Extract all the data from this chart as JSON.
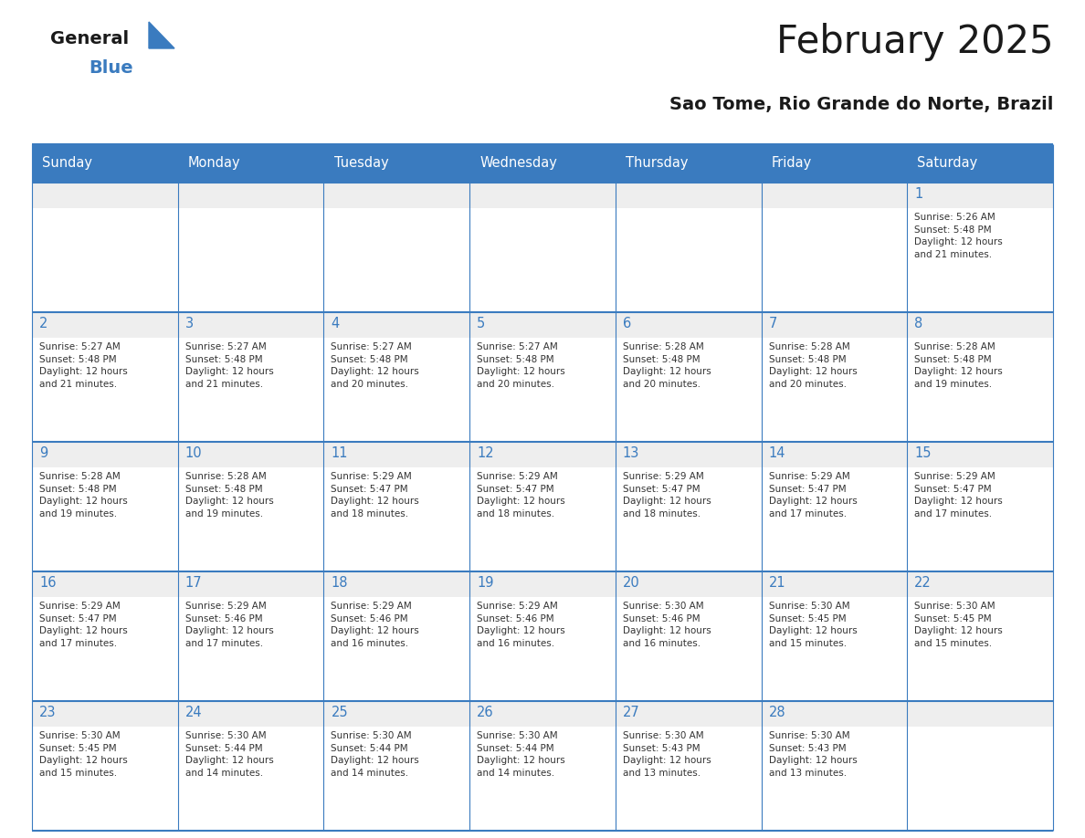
{
  "title": "February 2025",
  "subtitle": "Sao Tome, Rio Grande do Norte, Brazil",
  "header_color": "#3a7bbf",
  "header_text_color": "#ffffff",
  "cell_top_bg": "#eeeeee",
  "cell_body_bg": "#ffffff",
  "day_number_color": "#3a7bbf",
  "text_color": "#333333",
  "line_color": "#3a7bbf",
  "days_of_week": [
    "Sunday",
    "Monday",
    "Tuesday",
    "Wednesday",
    "Thursday",
    "Friday",
    "Saturday"
  ],
  "weeks": [
    [
      {
        "day": "",
        "info": ""
      },
      {
        "day": "",
        "info": ""
      },
      {
        "day": "",
        "info": ""
      },
      {
        "day": "",
        "info": ""
      },
      {
        "day": "",
        "info": ""
      },
      {
        "day": "",
        "info": ""
      },
      {
        "day": "1",
        "info": "Sunrise: 5:26 AM\nSunset: 5:48 PM\nDaylight: 12 hours\nand 21 minutes."
      }
    ],
    [
      {
        "day": "2",
        "info": "Sunrise: 5:27 AM\nSunset: 5:48 PM\nDaylight: 12 hours\nand 21 minutes."
      },
      {
        "day": "3",
        "info": "Sunrise: 5:27 AM\nSunset: 5:48 PM\nDaylight: 12 hours\nand 21 minutes."
      },
      {
        "day": "4",
        "info": "Sunrise: 5:27 AM\nSunset: 5:48 PM\nDaylight: 12 hours\nand 20 minutes."
      },
      {
        "day": "5",
        "info": "Sunrise: 5:27 AM\nSunset: 5:48 PM\nDaylight: 12 hours\nand 20 minutes."
      },
      {
        "day": "6",
        "info": "Sunrise: 5:28 AM\nSunset: 5:48 PM\nDaylight: 12 hours\nand 20 minutes."
      },
      {
        "day": "7",
        "info": "Sunrise: 5:28 AM\nSunset: 5:48 PM\nDaylight: 12 hours\nand 20 minutes."
      },
      {
        "day": "8",
        "info": "Sunrise: 5:28 AM\nSunset: 5:48 PM\nDaylight: 12 hours\nand 19 minutes."
      }
    ],
    [
      {
        "day": "9",
        "info": "Sunrise: 5:28 AM\nSunset: 5:48 PM\nDaylight: 12 hours\nand 19 minutes."
      },
      {
        "day": "10",
        "info": "Sunrise: 5:28 AM\nSunset: 5:48 PM\nDaylight: 12 hours\nand 19 minutes."
      },
      {
        "day": "11",
        "info": "Sunrise: 5:29 AM\nSunset: 5:47 PM\nDaylight: 12 hours\nand 18 minutes."
      },
      {
        "day": "12",
        "info": "Sunrise: 5:29 AM\nSunset: 5:47 PM\nDaylight: 12 hours\nand 18 minutes."
      },
      {
        "day": "13",
        "info": "Sunrise: 5:29 AM\nSunset: 5:47 PM\nDaylight: 12 hours\nand 18 minutes."
      },
      {
        "day": "14",
        "info": "Sunrise: 5:29 AM\nSunset: 5:47 PM\nDaylight: 12 hours\nand 17 minutes."
      },
      {
        "day": "15",
        "info": "Sunrise: 5:29 AM\nSunset: 5:47 PM\nDaylight: 12 hours\nand 17 minutes."
      }
    ],
    [
      {
        "day": "16",
        "info": "Sunrise: 5:29 AM\nSunset: 5:47 PM\nDaylight: 12 hours\nand 17 minutes."
      },
      {
        "day": "17",
        "info": "Sunrise: 5:29 AM\nSunset: 5:46 PM\nDaylight: 12 hours\nand 17 minutes."
      },
      {
        "day": "18",
        "info": "Sunrise: 5:29 AM\nSunset: 5:46 PM\nDaylight: 12 hours\nand 16 minutes."
      },
      {
        "day": "19",
        "info": "Sunrise: 5:29 AM\nSunset: 5:46 PM\nDaylight: 12 hours\nand 16 minutes."
      },
      {
        "day": "20",
        "info": "Sunrise: 5:30 AM\nSunset: 5:46 PM\nDaylight: 12 hours\nand 16 minutes."
      },
      {
        "day": "21",
        "info": "Sunrise: 5:30 AM\nSunset: 5:45 PM\nDaylight: 12 hours\nand 15 minutes."
      },
      {
        "day": "22",
        "info": "Sunrise: 5:30 AM\nSunset: 5:45 PM\nDaylight: 12 hours\nand 15 minutes."
      }
    ],
    [
      {
        "day": "23",
        "info": "Sunrise: 5:30 AM\nSunset: 5:45 PM\nDaylight: 12 hours\nand 15 minutes."
      },
      {
        "day": "24",
        "info": "Sunrise: 5:30 AM\nSunset: 5:44 PM\nDaylight: 12 hours\nand 14 minutes."
      },
      {
        "day": "25",
        "info": "Sunrise: 5:30 AM\nSunset: 5:44 PM\nDaylight: 12 hours\nand 14 minutes."
      },
      {
        "day": "26",
        "info": "Sunrise: 5:30 AM\nSunset: 5:44 PM\nDaylight: 12 hours\nand 14 minutes."
      },
      {
        "day": "27",
        "info": "Sunrise: 5:30 AM\nSunset: 5:43 PM\nDaylight: 12 hours\nand 13 minutes."
      },
      {
        "day": "28",
        "info": "Sunrise: 5:30 AM\nSunset: 5:43 PM\nDaylight: 12 hours\nand 13 minutes."
      },
      {
        "day": "",
        "info": ""
      }
    ]
  ],
  "logo_general_color": "#1a1a1a",
  "logo_blue_color": "#3a7bbf",
  "background_color": "#ffffff"
}
